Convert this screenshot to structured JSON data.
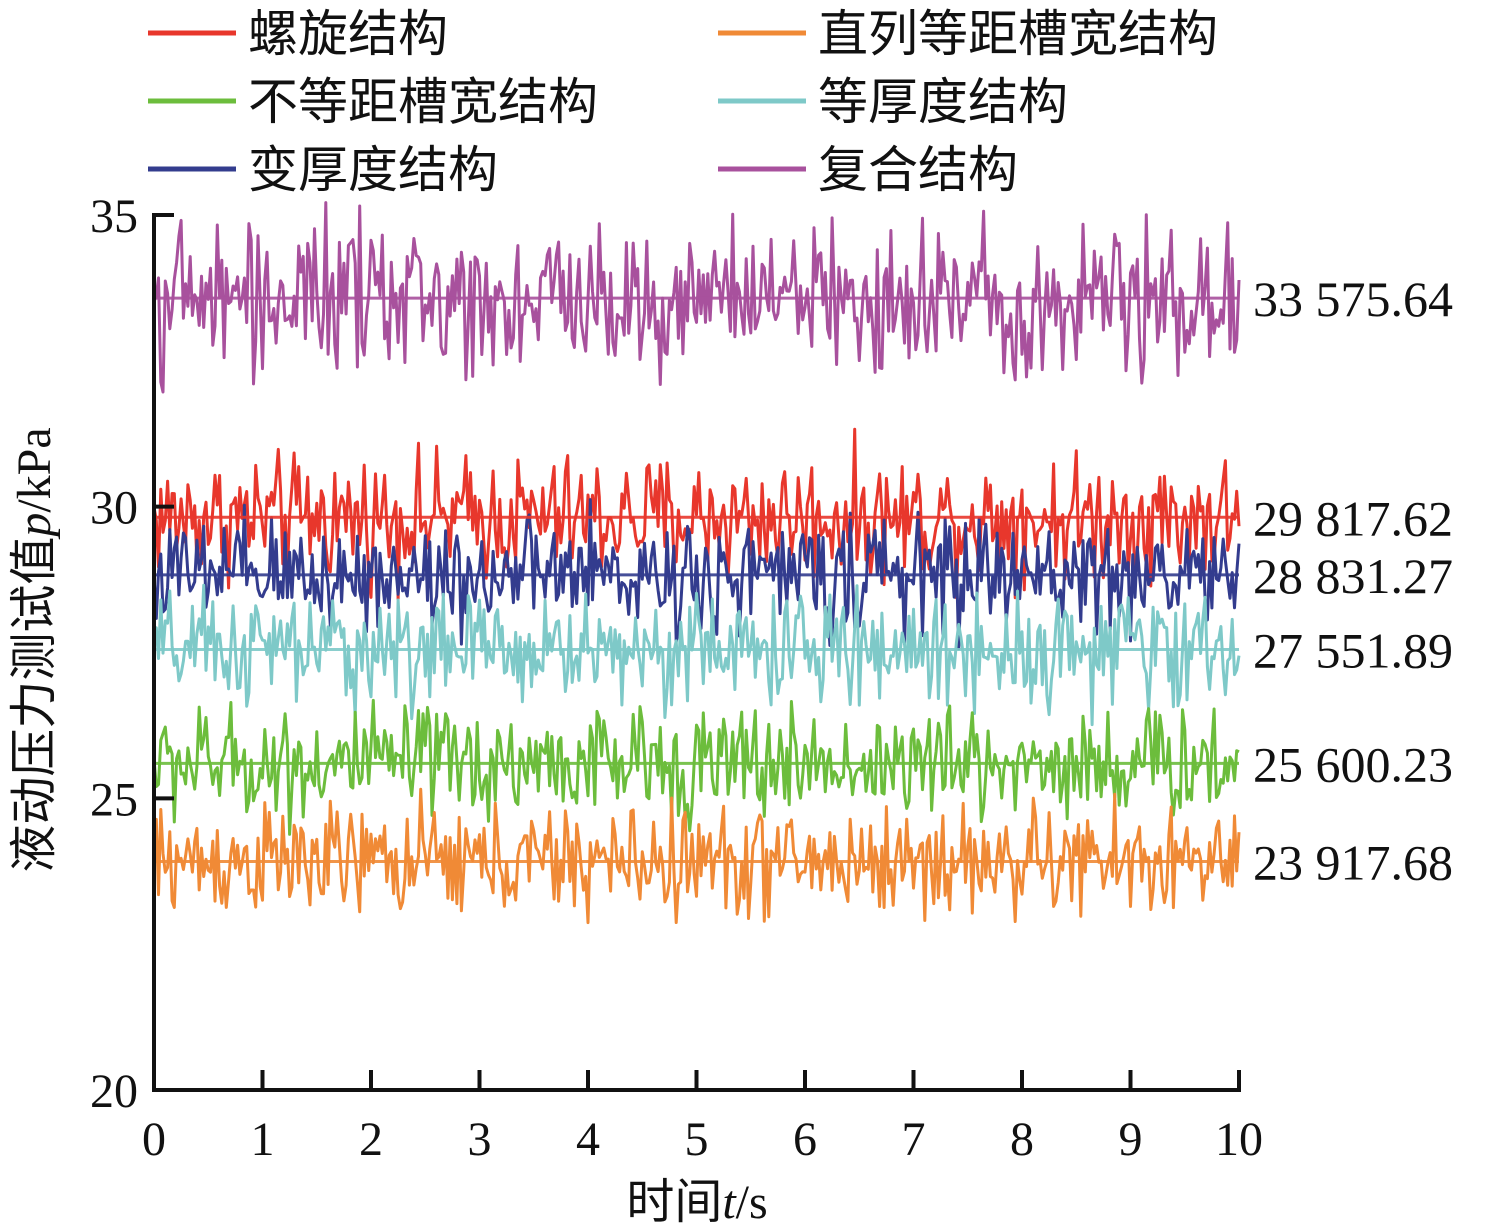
{
  "chart_data": {
    "type": "line",
    "title": "",
    "xlabel_prefix": "时间",
    "xlabel_var": "t",
    "xlabel_unit": "/s",
    "ylabel_prefix": "液动压力测试值",
    "ylabel_var": "p",
    "ylabel_unit": "/kPa",
    "xlim": [
      0,
      10
    ],
    "ylim": [
      20,
      35
    ],
    "x_ticks": [
      "0",
      "1",
      "2",
      "3",
      "4",
      "5",
      "6",
      "7",
      "8",
      "9",
      "10"
    ],
    "y_ticks": [
      "20",
      "25",
      "30",
      "35"
    ],
    "grid": false,
    "legend_position": "top",
    "series": [
      {
        "name": "螺旋结构",
        "color": "#e8372c",
        "mean": 29.818,
        "mean_label": "29 817.62",
        "amplitude": 1.15,
        "samples": 480
      },
      {
        "name": "直列等距槽宽结构",
        "color": "#f08a36",
        "mean": 23.918,
        "mean_label": "23 917.68",
        "amplitude": 1.05,
        "samples": 480
      },
      {
        "name": "不等距槽宽结构",
        "color": "#6cbd3c",
        "mean": 25.6,
        "mean_label": "25 600.23",
        "amplitude": 1.05,
        "samples": 480
      },
      {
        "name": "等厚度结构",
        "color": "#7ec9c8",
        "mean": 27.552,
        "mean_label": "27 551.89",
        "amplitude": 1.05,
        "samples": 480
      },
      {
        "name": "变厚度结构",
        "color": "#333c8e",
        "mean": 28.831,
        "mean_label": "28 831.27",
        "amplitude": 1.05,
        "samples": 480
      },
      {
        "name": "复合结构",
        "color": "#a8519d",
        "mean": 33.576,
        "mean_label": "33 575.64",
        "amplitude": 1.4,
        "samples": 480
      }
    ],
    "draw_order": [
      5,
      0,
      4,
      3,
      2,
      1
    ]
  }
}
